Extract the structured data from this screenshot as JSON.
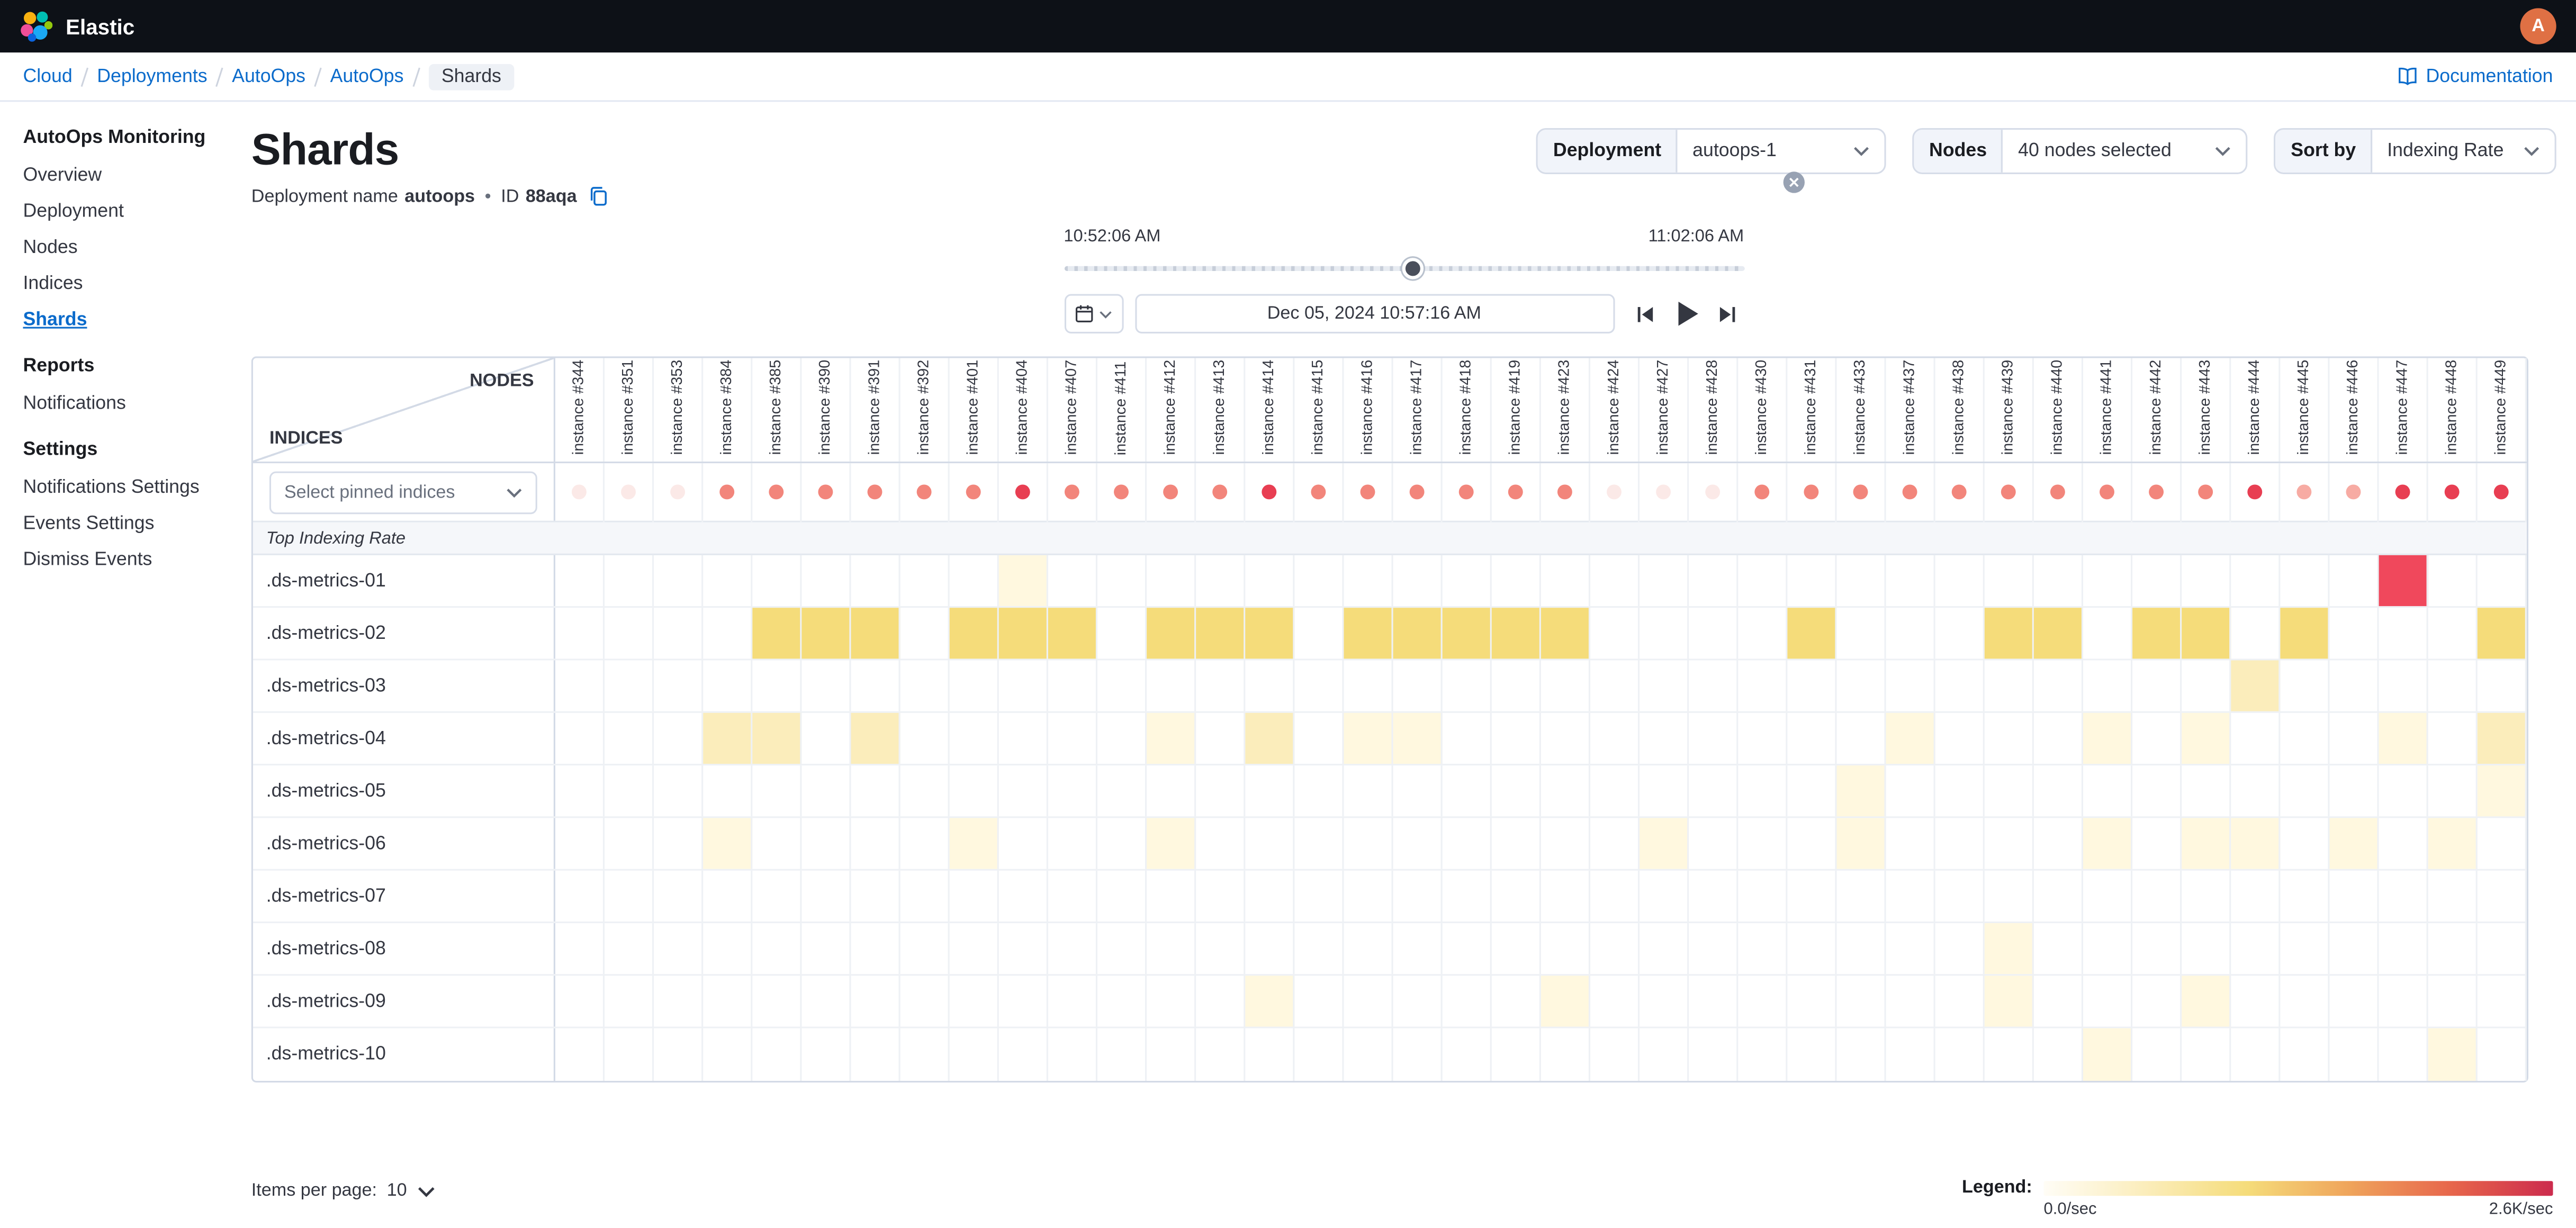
{
  "app": {
    "title": "Elastic",
    "avatar_initial": "A"
  },
  "breadcrumbs": {
    "items": [
      "Cloud",
      "Deployments",
      "AutoOps",
      "AutoOps",
      "Shards"
    ],
    "documentation_label": "Documentation"
  },
  "sidebar": {
    "active_item": "Shards",
    "sections": [
      {
        "heading": "AutoOps Monitoring",
        "items": [
          "Overview",
          "Deployment",
          "Nodes",
          "Indices",
          "Shards"
        ]
      },
      {
        "heading": "Reports",
        "items": [
          "Notifications"
        ]
      },
      {
        "heading": "Settings",
        "items": [
          "Notifications Settings",
          "Events Settings",
          "Dismiss Events"
        ]
      }
    ]
  },
  "page": {
    "title": "Shards",
    "subtitle": {
      "deployment_label": "Deployment name",
      "deployment_value": "autoops",
      "separator": "•",
      "id_label": "ID",
      "id_value": "88aqa"
    }
  },
  "filters": {
    "deployment": {
      "label": "Deployment",
      "value": "autoops-1"
    },
    "nodes": {
      "label": "Nodes",
      "value": "40 nodes selected"
    },
    "sort_by": {
      "label": "Sort by",
      "value": "Indexing Rate"
    }
  },
  "time": {
    "range_start": "10:52:06 AM",
    "range_end": "11:02:06 AM",
    "current_datetime": "Dec 05, 2024 10:57:16 AM",
    "thumb_pct": 51.4
  },
  "table": {
    "corner": {
      "nodes_label": "NODES",
      "indices_label": "INDICES"
    },
    "pinned_select_placeholder": "Select pinned indices",
    "section_label": "Top Indexing Rate",
    "columns": [
      "instance #344",
      "instance #351",
      "instance #353",
      "instance #384",
      "instance #385",
      "instance #390",
      "instance #391",
      "instance #392",
      "instance #401",
      "instance #404",
      "instance #407",
      "instance #411",
      "instance #412",
      "instance #413",
      "instance #414",
      "instance #415",
      "instance #416",
      "instance #417",
      "instance #418",
      "instance #419",
      "instance #423",
      "instance #424",
      "instance #427",
      "instance #428",
      "instance #430",
      "instance #431",
      "instance #433",
      "instance #437",
      "instance #438",
      "instance #439",
      "instance #440",
      "instance #441",
      "instance #442",
      "instance #443",
      "instance #444",
      "instance #445",
      "instance #446",
      "instance #447",
      "instance #448",
      "instance #449"
    ],
    "dot_palette": [
      "#fbe9e7",
      "#f7aba3",
      "#f2857b",
      "#e83e52"
    ],
    "node_status_levels": [
      0,
      0,
      0,
      2,
      2,
      2,
      2,
      2,
      2,
      3,
      2,
      2,
      2,
      2,
      3,
      2,
      2,
      2,
      2,
      2,
      2,
      0,
      0,
      0,
      2,
      2,
      2,
      2,
      2,
      2,
      2,
      2,
      2,
      2,
      3,
      1,
      1,
      3,
      3,
      3
    ],
    "heat_palette": [
      "#ffffff",
      "#fff8df",
      "#fbedbb",
      "#f5dc7a",
      "#f0485c"
    ],
    "rows": [
      {
        "label": ".ds-metrics-01",
        "cells": [
          0,
          0,
          0,
          0,
          0,
          0,
          0,
          0,
          0,
          1,
          0,
          0,
          0,
          0,
          0,
          0,
          0,
          0,
          0,
          0,
          0,
          0,
          0,
          0,
          0,
          0,
          0,
          0,
          0,
          0,
          0,
          0,
          0,
          0,
          0,
          0,
          0,
          4,
          0,
          0
        ]
      },
      {
        "label": ".ds-metrics-02",
        "cells": [
          0,
          0,
          0,
          0,
          3,
          3,
          3,
          0,
          3,
          3,
          3,
          0,
          3,
          3,
          3,
          0,
          3,
          3,
          3,
          3,
          3,
          0,
          0,
          0,
          0,
          3,
          0,
          0,
          0,
          3,
          3,
          0,
          3,
          3,
          0,
          3,
          0,
          0,
          0,
          3
        ]
      },
      {
        "label": ".ds-metrics-03",
        "cells": [
          0,
          0,
          0,
          0,
          0,
          0,
          0,
          0,
          0,
          0,
          0,
          0,
          0,
          0,
          0,
          0,
          0,
          0,
          0,
          0,
          0,
          0,
          0,
          0,
          0,
          0,
          0,
          0,
          0,
          0,
          0,
          0,
          0,
          0,
          2,
          0,
          0,
          0,
          0,
          0
        ]
      },
      {
        "label": ".ds-metrics-04",
        "cells": [
          0,
          0,
          0,
          2,
          2,
          0,
          2,
          0,
          0,
          0,
          0,
          0,
          1,
          0,
          2,
          0,
          1,
          1,
          0,
          0,
          0,
          0,
          0,
          0,
          0,
          0,
          0,
          1,
          0,
          0,
          0,
          1,
          0,
          1,
          0,
          0,
          0,
          1,
          0,
          2
        ]
      },
      {
        "label": ".ds-metrics-05",
        "cells": [
          0,
          0,
          0,
          0,
          0,
          0,
          0,
          0,
          0,
          0,
          0,
          0,
          0,
          0,
          0,
          0,
          0,
          0,
          0,
          0,
          0,
          0,
          0,
          0,
          0,
          0,
          1,
          0,
          0,
          0,
          0,
          0,
          0,
          0,
          0,
          0,
          0,
          0,
          0,
          1
        ]
      },
      {
        "label": ".ds-metrics-06",
        "cells": [
          0,
          0,
          0,
          1,
          0,
          0,
          0,
          0,
          1,
          0,
          0,
          0,
          1,
          0,
          0,
          0,
          0,
          0,
          0,
          0,
          0,
          0,
          1,
          0,
          0,
          0,
          1,
          0,
          0,
          0,
          0,
          1,
          0,
          1,
          1,
          0,
          1,
          0,
          1,
          0
        ]
      },
      {
        "label": ".ds-metrics-07",
        "cells": [
          0,
          0,
          0,
          0,
          0,
          0,
          0,
          0,
          0,
          0,
          0,
          0,
          0,
          0,
          0,
          0,
          0,
          0,
          0,
          0,
          0,
          0,
          0,
          0,
          0,
          0,
          0,
          0,
          0,
          0,
          0,
          0,
          0,
          0,
          0,
          0,
          0,
          0,
          0,
          0
        ]
      },
      {
        "label": ".ds-metrics-08",
        "cells": [
          0,
          0,
          0,
          0,
          0,
          0,
          0,
          0,
          0,
          0,
          0,
          0,
          0,
          0,
          0,
          0,
          0,
          0,
          0,
          0,
          0,
          0,
          0,
          0,
          0,
          0,
          0,
          0,
          0,
          1,
          0,
          0,
          0,
          0,
          0,
          0,
          0,
          0,
          0,
          0
        ]
      },
      {
        "label": ".ds-metrics-09",
        "cells": [
          0,
          0,
          0,
          0,
          0,
          0,
          0,
          0,
          0,
          0,
          0,
          0,
          0,
          0,
          1,
          0,
          0,
          0,
          0,
          0,
          1,
          0,
          0,
          0,
          0,
          0,
          0,
          0,
          0,
          1,
          0,
          0,
          0,
          1,
          0,
          0,
          0,
          0,
          0,
          0
        ]
      },
      {
        "label": ".ds-metrics-10",
        "cells": [
          0,
          0,
          0,
          0,
          0,
          0,
          0,
          0,
          0,
          0,
          0,
          0,
          0,
          0,
          0,
          0,
          0,
          0,
          0,
          0,
          0,
          0,
          0,
          0,
          0,
          0,
          0,
          0,
          0,
          0,
          0,
          1,
          0,
          0,
          0,
          0,
          0,
          0,
          1,
          0
        ]
      }
    ]
  },
  "pagination": {
    "label": "Items per page:",
    "value": "10"
  },
  "legend": {
    "label": "Legend:",
    "min": "0.0/sec",
    "max": "2.6K/sec",
    "gradient": [
      "#fffdf6",
      "#fbedbb",
      "#f5dc7a",
      "#efa45b",
      "#e7664c",
      "#cc2b4d"
    ]
  }
}
